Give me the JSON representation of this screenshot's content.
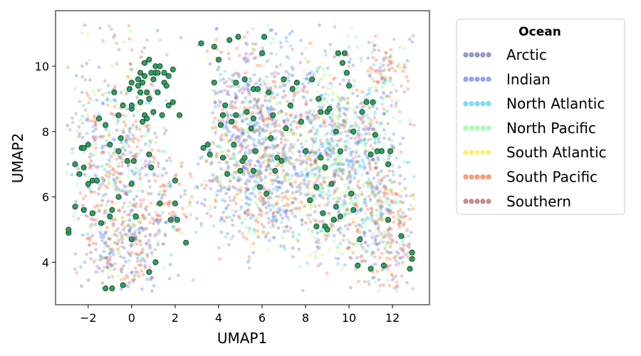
{
  "chart_data": {
    "type": "scatter",
    "title": "",
    "xlabel": "UMAP1",
    "ylabel": "UMAP2",
    "xlim": [
      -3.5,
      13.7
    ],
    "ylim": [
      2.7,
      11.7
    ],
    "xticks": [
      -2,
      0,
      2,
      4,
      6,
      8,
      10,
      12
    ],
    "yticks": [
      4,
      6,
      8,
      10
    ],
    "xtick_labels": [
      "−2",
      "0",
      "2",
      "4",
      "6",
      "8",
      "10",
      "12"
    ],
    "ytick_labels": [
      "4",
      "6",
      "8",
      "10"
    ],
    "grid": false,
    "legend": {
      "title": "Ocean",
      "placement": "outside-right-top",
      "entries": [
        {
          "name": "Arctic",
          "color": "#5b5ba8"
        },
        {
          "name": "Indian",
          "color": "#4f6ff0"
        },
        {
          "name": "North Atlantic",
          "color": "#2ec6f2"
        },
        {
          "name": "North Pacific",
          "color": "#7df58a"
        },
        {
          "name": "South Atlantic",
          "color": "#f5e63c"
        },
        {
          "name": "South Pacific",
          "color": "#f5622e"
        },
        {
          "name": "Southern",
          "color": "#a54646"
        }
      ]
    },
    "highlight_series": {
      "color": "#2ca25f",
      "edge_color": "#1a3d26",
      "points": [
        [
          -2.9,
          4.9
        ],
        [
          -2.9,
          5.0
        ],
        [
          -2.6,
          5.7
        ],
        [
          -2.6,
          7.0
        ],
        [
          -2.4,
          6.7
        ],
        [
          -2.3,
          7.5
        ],
        [
          -2.2,
          7.5
        ],
        [
          -2.2,
          5.6
        ],
        [
          -2.2,
          6.9
        ],
        [
          -2.0,
          6.4
        ],
        [
          -2.0,
          7.6
        ],
        [
          -1.8,
          6.5
        ],
        [
          -1.8,
          5.5
        ],
        [
          -1.6,
          6.5
        ],
        [
          -1.5,
          8.4
        ],
        [
          -1.4,
          5.2
        ],
        [
          -1.2,
          3.2
        ],
        [
          -1.2,
          8.2
        ],
        [
          -1.0,
          5.4
        ],
        [
          -1.0,
          7.6
        ],
        [
          -0.9,
          5.6
        ],
        [
          -0.9,
          3.2
        ],
        [
          -0.8,
          9.2
        ],
        [
          -0.6,
          6.0
        ],
        [
          -0.6,
          8.5
        ],
        [
          -0.6,
          7.4
        ],
        [
          -0.5,
          7.8
        ],
        [
          -0.4,
          3.3
        ],
        [
          -0.4,
          8.8
        ],
        [
          -0.2,
          7.1
        ],
        [
          -0.1,
          9.3
        ],
        [
          0.0,
          8.7
        ],
        [
          0.0,
          9.5
        ],
        [
          0.0,
          8.8
        ],
        [
          0.0,
          4.7
        ],
        [
          0.0,
          6.4
        ],
        [
          0.1,
          7.1
        ],
        [
          0.2,
          5.4
        ],
        [
          0.3,
          9.4
        ],
        [
          0.3,
          9.6
        ],
        [
          0.4,
          8.9
        ],
        [
          0.4,
          9.8
        ],
        [
          0.4,
          9.2
        ],
        [
          0.5,
          8.3
        ],
        [
          0.5,
          9.5
        ],
        [
          0.6,
          9.7
        ],
        [
          0.6,
          10.1
        ],
        [
          0.6,
          8.5
        ],
        [
          0.7,
          8.4
        ],
        [
          0.7,
          9.2
        ],
        [
          0.8,
          9.0
        ],
        [
          0.8,
          10.2
        ],
        [
          0.8,
          3.7
        ],
        [
          0.8,
          7.3
        ],
        [
          0.9,
          9.8
        ],
        [
          0.9,
          6.9
        ],
        [
          1.0,
          9.6
        ],
        [
          1.0,
          8.6
        ],
        [
          1.1,
          4.0
        ],
        [
          1.1,
          9.8
        ],
        [
          1.1,
          10.0
        ],
        [
          1.2,
          9.8
        ],
        [
          1.2,
          9.2
        ],
        [
          1.3,
          10.0
        ],
        [
          1.3,
          5.8
        ],
        [
          1.4,
          8.5
        ],
        [
          1.5,
          9.5
        ],
        [
          1.5,
          9.8
        ],
        [
          1.6,
          9.4
        ],
        [
          1.7,
          9.7
        ],
        [
          1.7,
          8.8
        ],
        [
          1.8,
          5.3
        ],
        [
          1.9,
          8.9
        ],
        [
          1.9,
          9.9
        ],
        [
          2.0,
          6.5
        ],
        [
          2.0,
          5.8
        ],
        [
          2.1,
          5.3
        ],
        [
          2.2,
          8.5
        ],
        [
          2.5,
          4.6
        ],
        [
          3.2,
          10.7
        ],
        [
          3.3,
          7.5
        ],
        [
          3.5,
          7.6
        ],
        [
          3.6,
          7.3
        ],
        [
          3.8,
          10.6
        ],
        [
          3.8,
          9.5
        ],
        [
          4.0,
          10.2
        ],
        [
          4.1,
          8.2
        ],
        [
          4.2,
          8.5
        ],
        [
          4.2,
          7.2
        ],
        [
          4.3,
          8.8
        ],
        [
          4.4,
          6.7
        ],
        [
          4.5,
          10.8
        ],
        [
          4.6,
          8.3
        ],
        [
          4.7,
          7.6
        ],
        [
          4.8,
          9.5
        ],
        [
          4.8,
          8.5
        ],
        [
          4.9,
          10.9
        ],
        [
          5.0,
          6.8
        ],
        [
          5.1,
          7.1
        ],
        [
          5.2,
          9.6
        ],
        [
          5.2,
          7.2
        ],
        [
          5.3,
          8.6
        ],
        [
          5.5,
          8.1
        ],
        [
          5.6,
          9.3
        ],
        [
          5.6,
          8.4
        ],
        [
          5.6,
          6.8
        ],
        [
          5.7,
          7.4
        ],
        [
          5.8,
          9.3
        ],
        [
          5.9,
          6.3
        ],
        [
          6.0,
          10.4
        ],
        [
          6.1,
          10.9
        ],
        [
          6.2,
          6.1
        ],
        [
          6.3,
          9.2
        ],
        [
          6.4,
          7.8
        ],
        [
          6.5,
          8.5
        ],
        [
          6.6,
          6.8
        ],
        [
          6.7,
          7.2
        ],
        [
          6.9,
          7.1
        ],
        [
          7.0,
          9.6
        ],
        [
          7.1,
          8.1
        ],
        [
          7.3,
          8.8
        ],
        [
          7.4,
          9.3
        ],
        [
          7.6,
          9.5
        ],
        [
          7.8,
          8.3
        ],
        [
          8.0,
          7.4
        ],
        [
          8.2,
          5.9
        ],
        [
          8.3,
          9.6
        ],
        [
          8.5,
          5.1
        ],
        [
          8.5,
          6.3
        ],
        [
          8.6,
          9.0
        ],
        [
          8.7,
          7.2
        ],
        [
          8.7,
          8.6
        ],
        [
          8.8,
          5.5
        ],
        [
          8.9,
          6.9
        ],
        [
          8.9,
          5.1
        ],
        [
          9.0,
          5.0
        ],
        [
          9.0,
          8.6
        ],
        [
          9.1,
          8.7
        ],
        [
          9.2,
          6.4
        ],
        [
          9.3,
          5.3
        ],
        [
          9.4,
          5.7
        ],
        [
          9.4,
          8.0
        ],
        [
          9.5,
          10.4
        ],
        [
          9.6,
          7.4
        ],
        [
          9.6,
          5.4
        ],
        [
          9.7,
          10.1
        ],
        [
          9.8,
          10.4
        ],
        [
          9.9,
          9.8
        ],
        [
          10.0,
          9.4
        ],
        [
          10.1,
          6.1
        ],
        [
          10.2,
          5.6
        ],
        [
          10.2,
          8.0
        ],
        [
          10.4,
          3.9
        ],
        [
          10.5,
          4.7
        ],
        [
          10.6,
          8.6
        ],
        [
          10.8,
          8.9
        ],
        [
          11.0,
          3.8
        ],
        [
          11.0,
          7.3
        ],
        [
          11.1,
          8.9
        ],
        [
          11.2,
          7.9
        ],
        [
          11.3,
          7.4
        ],
        [
          11.5,
          7.4
        ],
        [
          11.6,
          3.9
        ],
        [
          11.8,
          7.0
        ],
        [
          11.8,
          5.3
        ],
        [
          11.9,
          7.4
        ],
        [
          12.4,
          4.8
        ],
        [
          12.8,
          3.8
        ],
        [
          12.9,
          4.1
        ],
        [
          12.9,
          4.3
        ]
      ]
    }
  }
}
